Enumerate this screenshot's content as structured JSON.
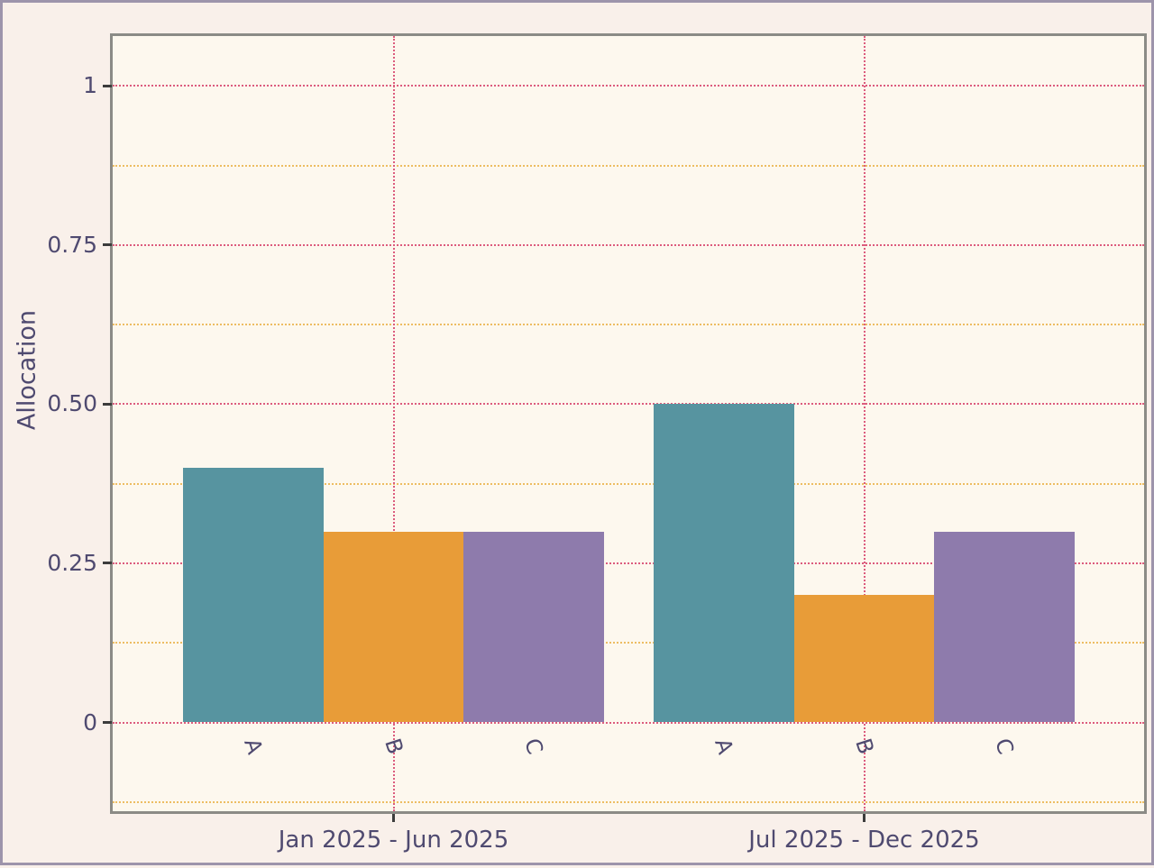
{
  "chart_data": {
    "type": "bar",
    "title": "",
    "ylabel": "Allocation",
    "xlabel": "",
    "categories": [
      "A",
      "B",
      "C"
    ],
    "groups": [
      {
        "label": "Jan 2025 - Jun 2025",
        "values": [
          0.4,
          0.3,
          0.3
        ]
      },
      {
        "label": "Jul 2025 - Dec 2025",
        "values": [
          0.5,
          0.2,
          0.3
        ]
      }
    ],
    "series_colors": [
      "#5794a0",
      "#e89c38",
      "#8e7bac"
    ],
    "y_ticks": [
      {
        "label": "0",
        "value": 0
      },
      {
        "label": "0.25",
        "value": 0.25
      },
      {
        "label": "0.50",
        "value": 0.5
      },
      {
        "label": "0.75",
        "value": 0.75
      },
      {
        "label": "1",
        "value": 1
      }
    ],
    "y_minor_ticks": [
      -0.125,
      0.125,
      0.375,
      0.625,
      0.875
    ],
    "ylim": [
      -0.1395,
      1.0785
    ],
    "grid": "major-and-minor dotted, horizontal majors at labeled ticks, vertical majors at group centers",
    "legend": "none"
  },
  "colors": {
    "outer_background": "#f9f0ea",
    "plot_background": "#fdf8ee",
    "outer_border": "#9d94ab",
    "frame": "#8b8b86",
    "grid_major": "#dc5c7d",
    "grid_minor": "#edbd62",
    "text": "#4f4a70",
    "tick_mark": "#3c3c3c"
  }
}
